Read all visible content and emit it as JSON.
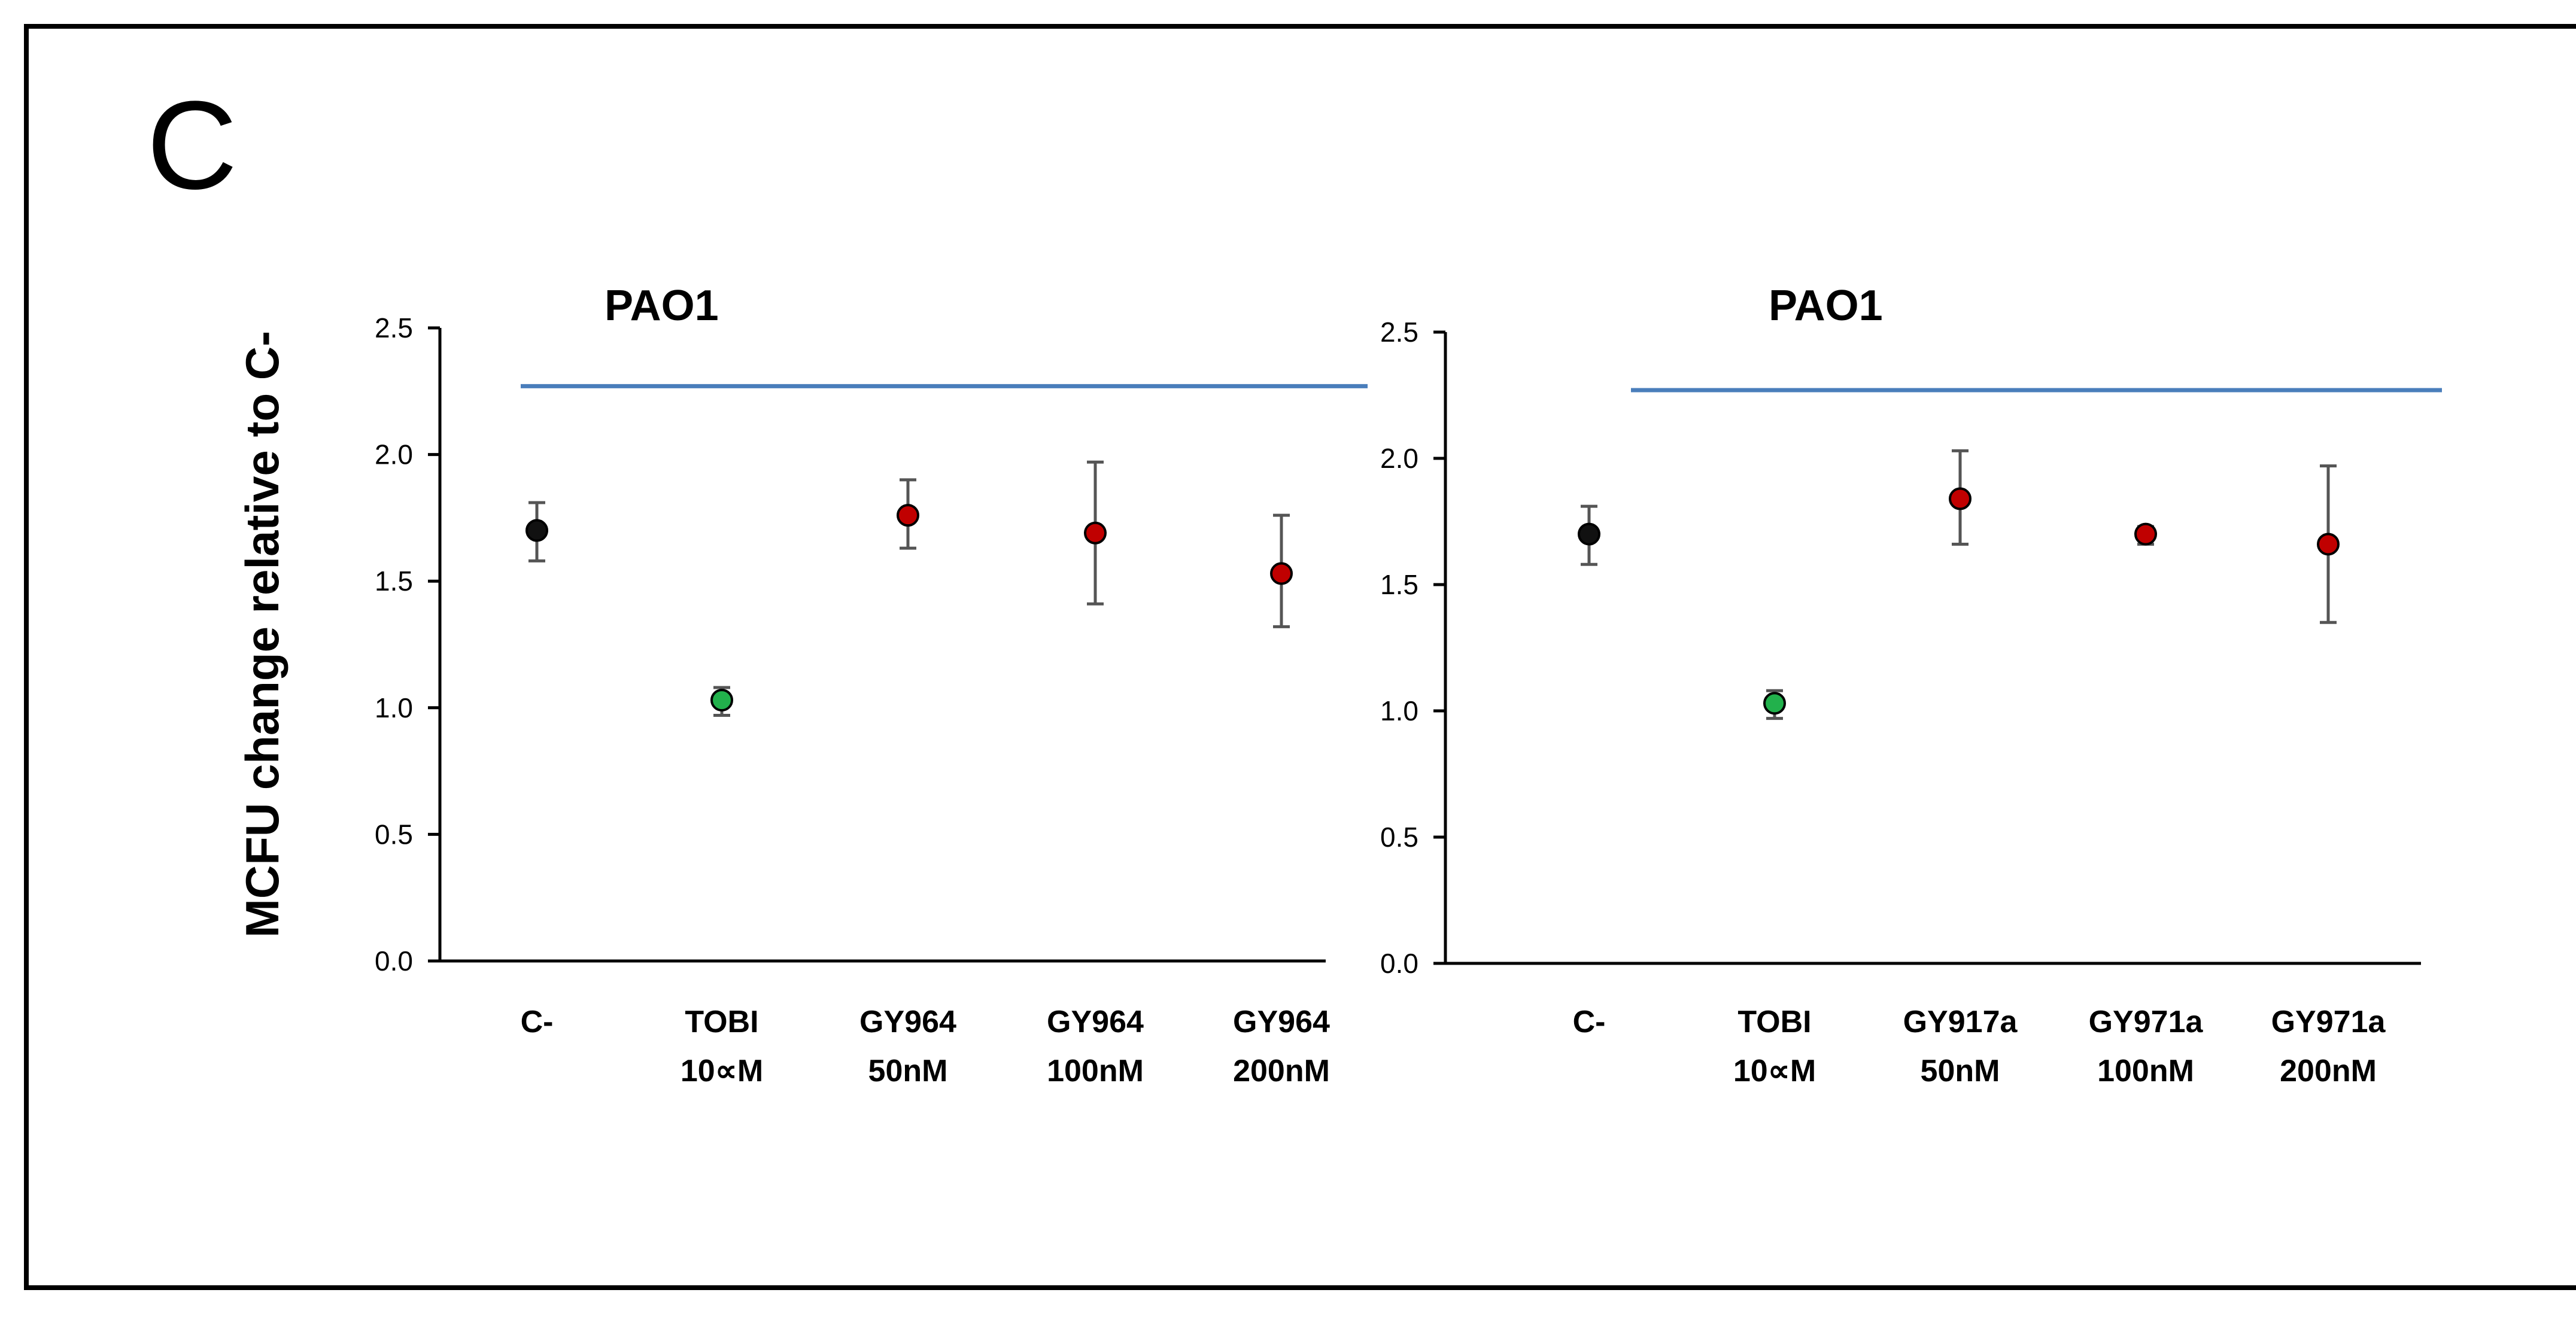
{
  "panel_letter": "C",
  "ylabel": "MCFU change relative to C-",
  "colors": {
    "control": "#111111",
    "tobi": "#22b14c",
    "compound": "#c00000",
    "reference_line": "#4a7ebb",
    "error_bar": "#555555",
    "axis": "#000000"
  },
  "chart_data": [
    {
      "type": "scatter",
      "title": "PAO1",
      "ylim": [
        0,
        2.5
      ],
      "yticks": [
        "0.0",
        "0.5",
        "1.0",
        "1.5",
        "2.0",
        "2.5"
      ],
      "categories": [
        [
          "C-"
        ],
        [
          "TOBI",
          "10∝M"
        ],
        [
          "GY964",
          "50nM"
        ],
        [
          "GY964",
          "100nM"
        ],
        [
          "GY964",
          "200nM"
        ]
      ],
      "values": [
        1.7,
        1.03,
        1.76,
        1.69,
        1.53
      ],
      "err_low": [
        1.58,
        0.97,
        1.63,
        1.41,
        1.32
      ],
      "err_high": [
        1.81,
        1.08,
        1.9,
        1.97,
        1.76
      ],
      "point_colors": [
        "control",
        "tobi",
        "compound",
        "compound",
        "compound"
      ],
      "reference_line_y": 2.27
    },
    {
      "type": "scatter",
      "title": "PAO1",
      "ylim": [
        0,
        2.5
      ],
      "yticks": [
        "0.0",
        "0.5",
        "1.0",
        "1.5",
        "2.0",
        "2.5"
      ],
      "categories": [
        [
          "C-"
        ],
        [
          "TOBI",
          "10∝M"
        ],
        [
          "GY917a",
          "50nM"
        ],
        [
          "GY971a",
          "100nM"
        ],
        [
          "GY971a",
          "200nM"
        ]
      ],
      "values": [
        1.7,
        1.03,
        1.84,
        1.7,
        1.66
      ],
      "err_low": [
        1.58,
        0.97,
        1.66,
        1.66,
        1.35
      ],
      "err_high": [
        1.81,
        1.08,
        2.03,
        1.73,
        1.97
      ],
      "point_colors": [
        "control",
        "tobi",
        "compound",
        "compound",
        "compound"
      ],
      "reference_line_y": 2.27
    }
  ]
}
